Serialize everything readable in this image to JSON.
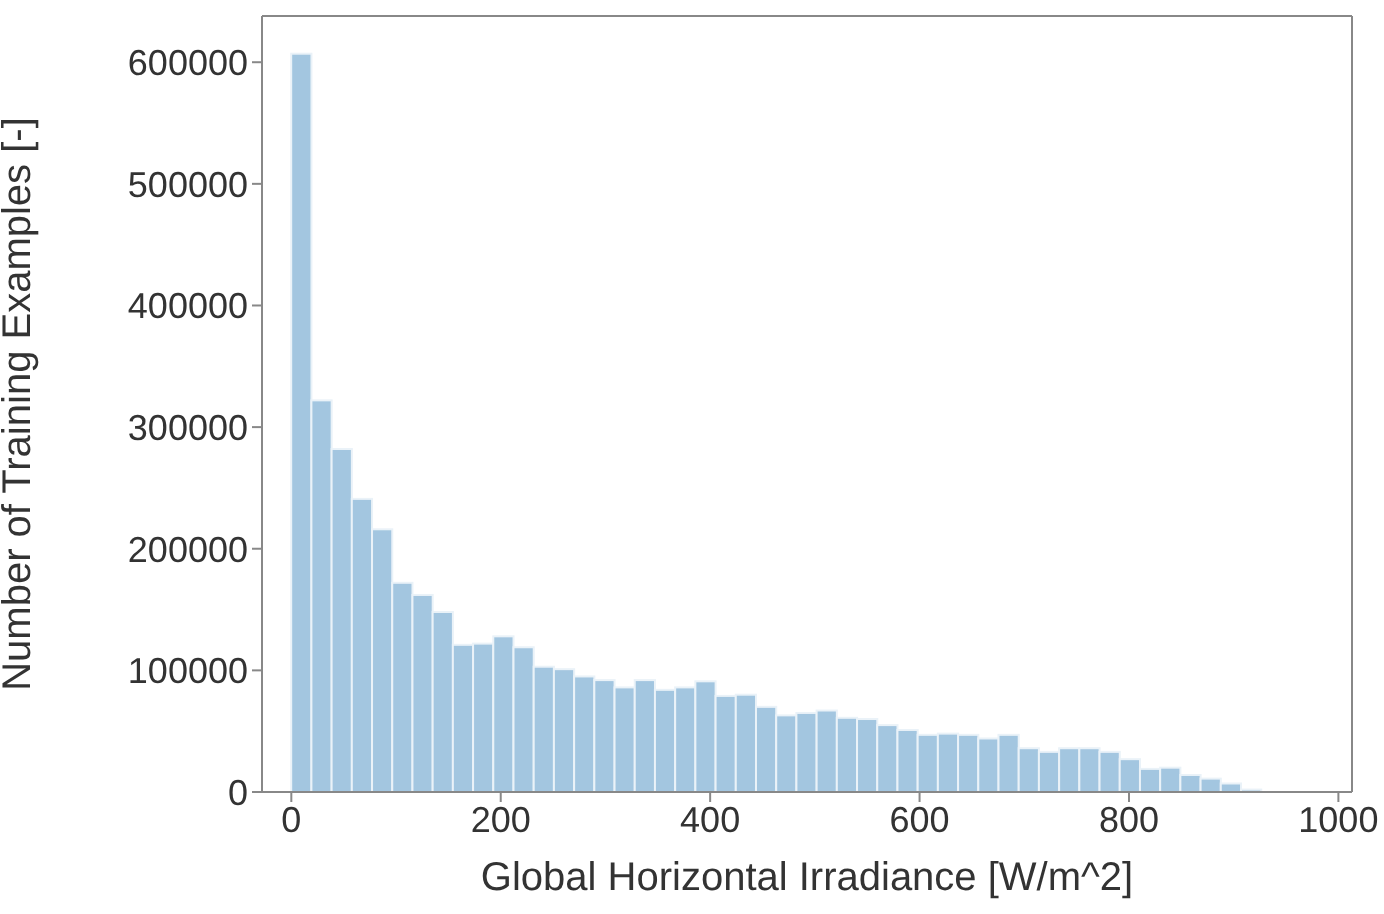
{
  "chart_data": {
    "type": "histogram",
    "xlabel": "Global Horizontal Irradiance [W/m^2]",
    "ylabel": "Number of Training Examples [-]",
    "color": "#a3c6e0",
    "bins": [
      0,
      19.3,
      38.6,
      57.9,
      77.2,
      96.5,
      115.8,
      135.1,
      154.4,
      173.7,
      193,
      212.3,
      231.6,
      250.9,
      270.2,
      289.5,
      308.8,
      328.1,
      347.4,
      366.7,
      386,
      405.3,
      424.6,
      443.9,
      463.2,
      482.5,
      501.8,
      521.1,
      540.4,
      559.7,
      579,
      598.3,
      617.6,
      636.9,
      656.2,
      675.5,
      694.8,
      714.1,
      733.4,
      752.7,
      772,
      791.3,
      810.6,
      829.9,
      849.2,
      868.5,
      887.8,
      907.1,
      926.4
    ],
    "values": [
      607000,
      322000,
      282000,
      241000,
      216000,
      172000,
      162000,
      148000,
      121000,
      122000,
      128000,
      119000,
      103000,
      101000,
      95000,
      92000,
      86000,
      92000,
      84000,
      86000,
      91000,
      79000,
      80000,
      70000,
      63000,
      65000,
      67000,
      61000,
      60000,
      55000,
      51000,
      47000,
      48000,
      47000,
      44000,
      47000,
      36000,
      33000,
      36000,
      36000,
      33000,
      27000,
      19000,
      20000,
      14000,
      11000,
      7000,
      2000
    ],
    "xlim": [
      -28,
      1013
    ],
    "xticks": [
      0,
      200,
      400,
      600,
      800,
      1000
    ],
    "ylim": [
      0,
      638000
    ],
    "yticks": [
      0,
      100000,
      200000,
      300000,
      400000,
      500000,
      600000
    ],
    "grid": false
  }
}
